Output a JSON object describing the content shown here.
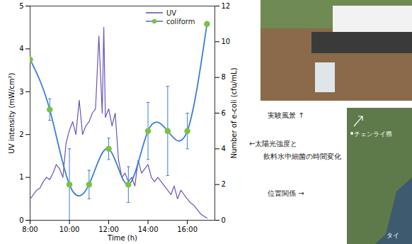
{
  "chart_data": {
    "type": "line",
    "x_label": "Time (h)",
    "y_label": "UV intensity (mW/cm²)",
    "y2_label": "Number of e-coli (cfu/mL)",
    "xlim": [
      8,
      17.4
    ],
    "xticks": [
      {
        "value": 8,
        "label": "8:00"
      },
      {
        "value": 10,
        "label": "10:00"
      },
      {
        "value": 12,
        "label": "12:00"
      },
      {
        "value": 14,
        "label": "14:00"
      },
      {
        "value": 16,
        "label": "16:00"
      }
    ],
    "ylim": [
      0,
      5
    ],
    "yticks": [
      0,
      1,
      2,
      3,
      4,
      5
    ],
    "y2lim": [
      0,
      12
    ],
    "y2ticks": [
      0,
      2,
      4,
      6,
      8,
      10,
      12
    ],
    "legend": "top",
    "series": [
      {
        "name": "UV",
        "color": "#6a52b8",
        "line_style": "solid",
        "x": [
          8,
          8.17,
          8.33,
          8.5,
          8.67,
          8.83,
          9,
          9.17,
          9.33,
          9.5,
          9.67,
          9.83,
          10,
          10.17,
          10.33,
          10.5,
          10.67,
          10.83,
          11,
          11.17,
          11.33,
          11.5,
          11.67,
          11.75,
          11.83,
          12,
          12.17,
          12.33,
          12.5,
          12.67,
          12.83,
          13,
          13.17,
          13.33,
          13.5,
          13.67,
          13.83,
          14,
          14.17,
          14.33,
          14.5,
          14.67,
          14.83,
          15,
          15.17,
          15.33,
          15.5,
          15.67,
          15.83,
          16,
          16.17,
          16.33,
          16.5,
          16.67,
          16.83,
          17
        ],
        "values": [
          0.5,
          0.6,
          0.7,
          0.75,
          0.9,
          1.0,
          0.95,
          1.1,
          1.3,
          1.2,
          1.0,
          1.8,
          2.1,
          2.3,
          2.0,
          2.8,
          2.0,
          2.2,
          2.3,
          2.5,
          2.6,
          4.3,
          2.5,
          4.5,
          2.4,
          2.6,
          2.2,
          2.5,
          1.4,
          1.0,
          1.1,
          0.9,
          1.0,
          0.8,
          1.4,
          1.1,
          1.2,
          1.3,
          1.0,
          0.9,
          1.0,
          0.9,
          0.8,
          0.7,
          0.6,
          0.8,
          0.5,
          0.7,
          0.6,
          0.5,
          0.4,
          0.35,
          0.25,
          0.15,
          0.1,
          0.05
        ]
      },
      {
        "name": "coliform",
        "axis": "y2",
        "color": "#7dc142",
        "marker": "circle",
        "x": [
          8,
          9,
          10,
          11,
          12,
          13,
          14,
          15,
          16,
          17
        ],
        "values": [
          9.0,
          6.2,
          2.0,
          2.0,
          4.0,
          2.0,
          5.0,
          5.0,
          5.0,
          11.0
        ],
        "errors": [
          null,
          0.6,
          2.0,
          0.8,
          0.6,
          1.0,
          1.6,
          2.5,
          1.0,
          null
        ]
      }
    ]
  },
  "side_panel": {
    "photo_caption": "実験風景 ↑",
    "chart_caption": [
      "←太陽光強度と",
      "飲料水中細菌の時間変化"
    ],
    "map_caption": "位置関係 →",
    "map_labels": [
      "チェンライ県",
      "タイ"
    ]
  }
}
